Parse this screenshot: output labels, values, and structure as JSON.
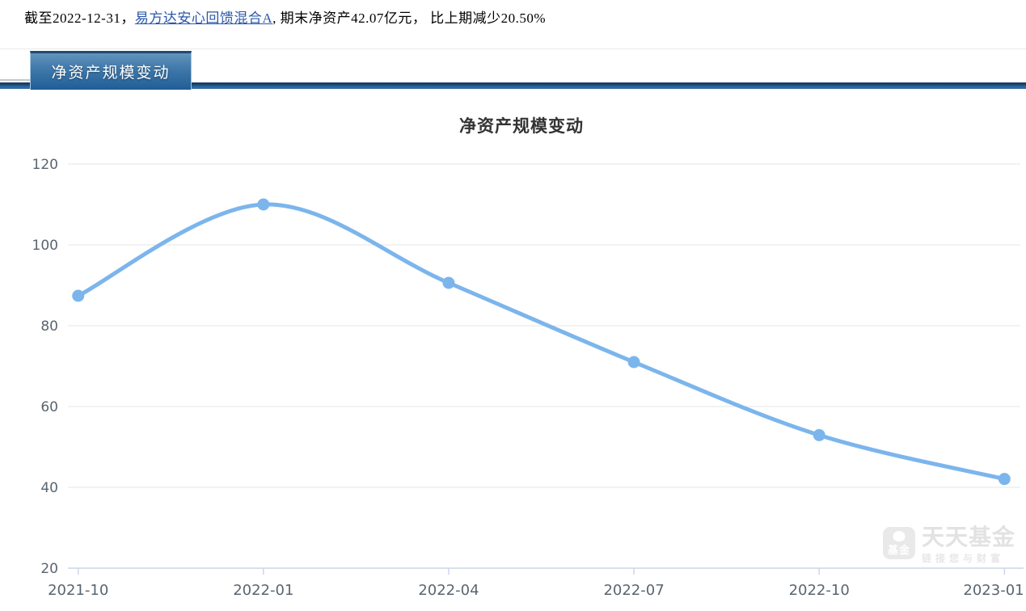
{
  "page": {
    "summary": {
      "prefix": "截至2022-12-31，",
      "fund_link": "易方达安心回馈混合A",
      "suffix": ", 期末净资产42.07亿元， 比上期减少20.50%"
    },
    "tab": "净资产规模变动"
  },
  "chart_data": {
    "type": "line",
    "title": "净资产规模变动",
    "categories": [
      "2021-10",
      "2022-01",
      "2022-04",
      "2022-07",
      "2022-10",
      "2023-01"
    ],
    "values": [
      87.4,
      110.0,
      90.6,
      71.0,
      52.92,
      42.07
    ],
    "ylim": [
      20,
      120
    ],
    "yticks": [
      120,
      100,
      80,
      60,
      40,
      20
    ],
    "grid": true,
    "legend": false,
    "smooth": true,
    "line_color": "#7cb5ec",
    "marker_color": "#7cb5ec",
    "grid_color": "#e6e6e6",
    "axis_color": "#ccd6eb",
    "label_color": "#5a6570",
    "title_color": "#333333"
  },
  "watermark": {
    "icon_text": "基金",
    "brand": "天天基金",
    "slogan": "链接您与财富"
  }
}
